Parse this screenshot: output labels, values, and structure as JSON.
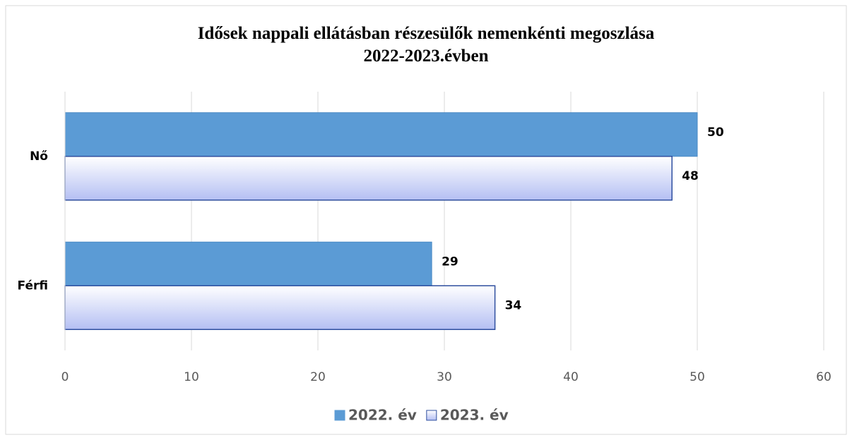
{
  "chart_data": {
    "type": "hbar",
    "title": "Idősek nappali ellátásban részesülők nemenkénti megoszlása 2022-2023.évben",
    "categories": [
      "Nő",
      "Férfi"
    ],
    "series": [
      {
        "name": "2022. év",
        "color": "#5b9bd5",
        "values": [
          50,
          29
        ]
      },
      {
        "name": "2023. év",
        "color": "#b4bff3",
        "values": [
          48,
          34
        ]
      }
    ],
    "xlim": [
      0,
      60
    ],
    "xticks": [
      0,
      10,
      20,
      30,
      40,
      50,
      60
    ],
    "grid": true,
    "legend": "bottom"
  }
}
